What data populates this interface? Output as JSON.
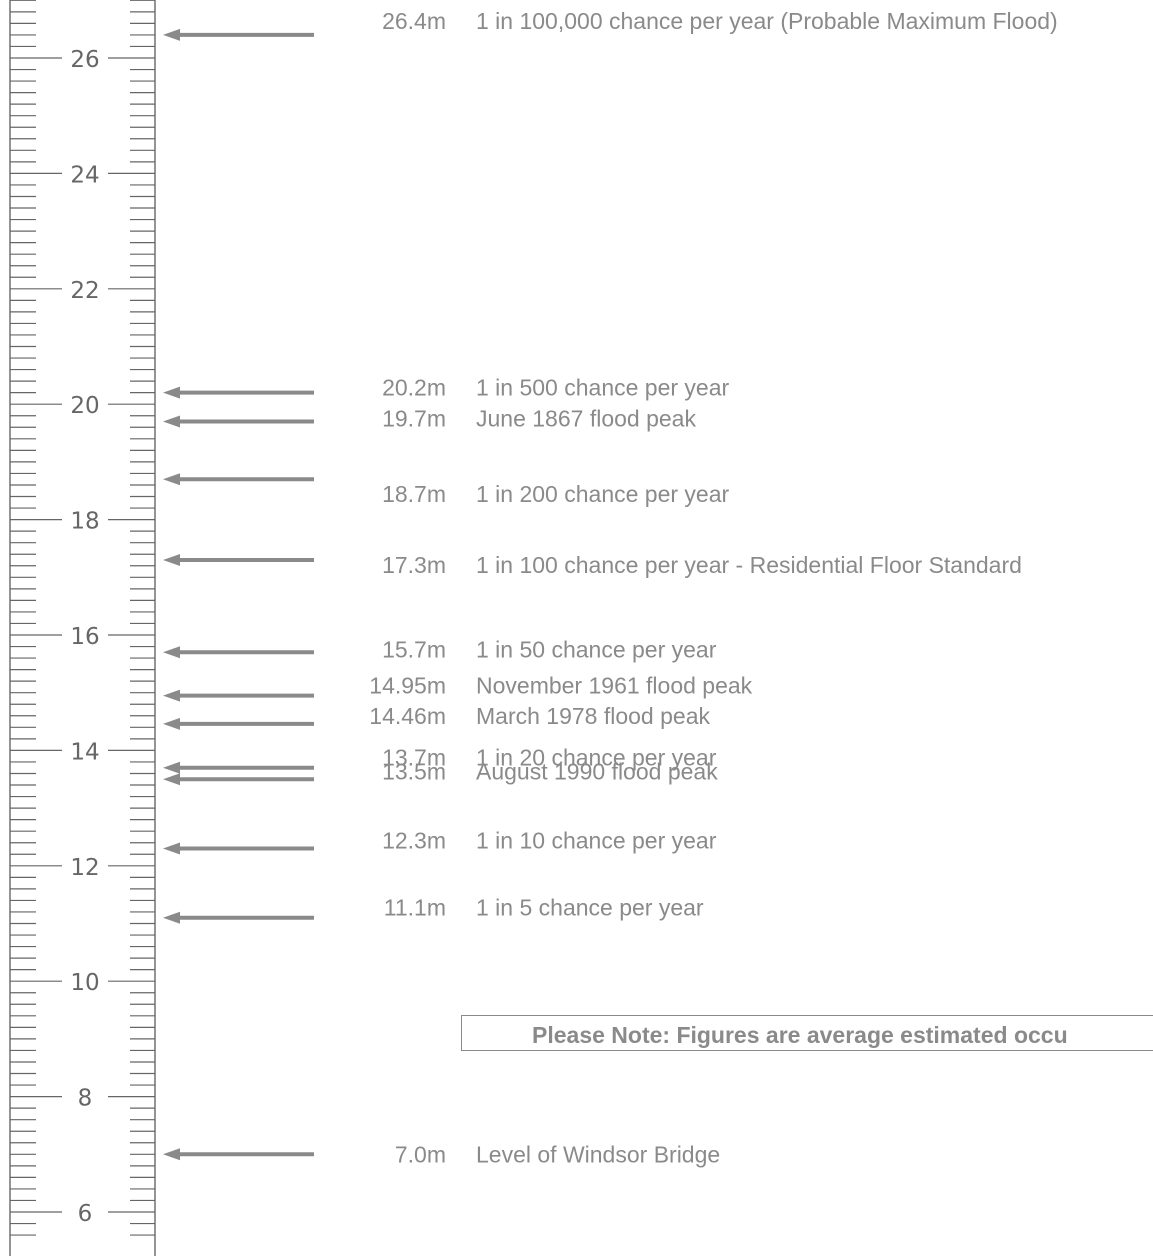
{
  "chart_data": {
    "type": "flood-gauge",
    "unit": "m",
    "axis": {
      "min": 6,
      "max": 27,
      "major_ticks": [
        6,
        8,
        10,
        12,
        14,
        16,
        18,
        20,
        22,
        24,
        26
      ]
    },
    "levels": [
      {
        "value": 26.4,
        "label": "26.4m",
        "description": "1 in 100,000 chance per year (Probable Maximum Flood)"
      },
      {
        "value": 20.2,
        "label": "20.2m",
        "description": "1 in 500 chance per year"
      },
      {
        "value": 19.7,
        "label": "19.7m",
        "description": "June 1867 flood peak"
      },
      {
        "value": 18.7,
        "label": "18.7m",
        "description": "1 in 200 chance per year"
      },
      {
        "value": 17.3,
        "label": "17.3m",
        "description": "1 in 100 chance per year - Residential Floor Standard"
      },
      {
        "value": 15.7,
        "label": "15.7m",
        "description": "1 in 50 chance per year"
      },
      {
        "value": 14.95,
        "label": "14.95m",
        "description": "November 1961 flood peak"
      },
      {
        "value": 14.46,
        "label": "14.46m",
        "description": "March 1978 flood peak"
      },
      {
        "value": 13.7,
        "label": "13.7m",
        "description": "1 in 20 chance per year"
      },
      {
        "value": 13.5,
        "label": "13.5m",
        "description": "August 1990 flood peak"
      },
      {
        "value": 12.3,
        "label": "12.3m",
        "description": "1 in 10 chance per year"
      },
      {
        "value": 11.1,
        "label": "11.1m",
        "description": "1 in 5 chance per year"
      },
      {
        "value": 7.0,
        "label": "7.0m",
        "description": "Level of Windsor Bridge"
      }
    ]
  },
  "note": {
    "text": "Please Note: Figures are average estimated occu"
  },
  "colors": {
    "arrow": "#8a8a8a",
    "text": "#8a8a8a",
    "scale": "#666666"
  }
}
